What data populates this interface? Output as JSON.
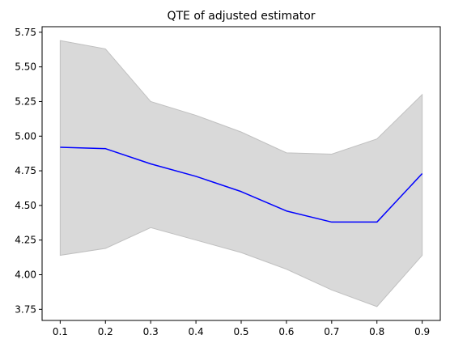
{
  "chart_data": {
    "type": "line",
    "title": "QTE of adjusted estimator",
    "xlabel": "",
    "ylabel": "",
    "x": [
      0.1,
      0.2,
      0.3,
      0.4,
      0.5,
      0.6,
      0.7,
      0.8,
      0.9
    ],
    "x_tick_labels": [
      "0.1",
      "0.2",
      "0.3",
      "0.4",
      "0.5",
      "0.6",
      "0.7",
      "0.8",
      "0.9"
    ],
    "y_ticks": [
      3.75,
      4.0,
      4.25,
      4.5,
      4.75,
      5.0,
      5.25,
      5.5,
      5.75
    ],
    "y_tick_labels": [
      "3.75",
      "4.00",
      "4.25",
      "4.50",
      "4.75",
      "5.00",
      "5.25",
      "5.50",
      "5.75"
    ],
    "ylim": [
      3.67,
      5.79
    ],
    "xlim": [
      0.06,
      0.94
    ],
    "grid": false,
    "legend": "none",
    "series": [
      {
        "kind": "line",
        "color": "#0000ff",
        "values": [
          4.92,
          4.91,
          4.8,
          4.71,
          4.6,
          4.46,
          4.38,
          4.38,
          4.73
        ]
      }
    ],
    "band": {
      "kind": "fill_between",
      "color": "#c0c0c0",
      "fill_opacity": 0.6,
      "lower": [
        4.14,
        4.19,
        4.34,
        4.25,
        4.16,
        4.04,
        3.89,
        3.77,
        4.14
      ],
      "upper": [
        5.69,
        5.63,
        5.25,
        5.15,
        5.03,
        4.88,
        4.87,
        4.98,
        5.3
      ]
    }
  }
}
